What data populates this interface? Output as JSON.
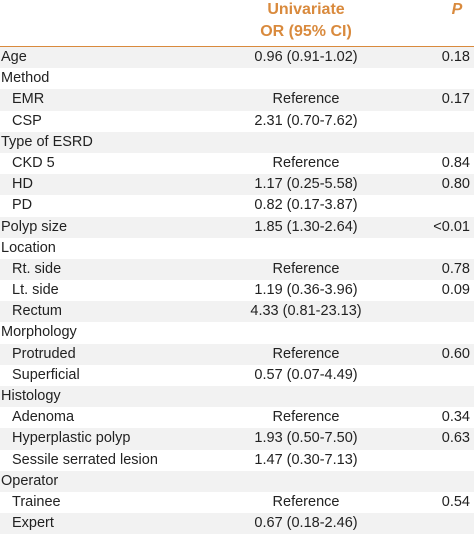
{
  "header": {
    "col_or_line1": "Univariate",
    "col_or_line2": "OR (95% CI)",
    "col_p": "P"
  },
  "colors": {
    "header_text": "#d98a3d",
    "row_shade": "#f2f2f2"
  },
  "rows": [
    {
      "label": "Age",
      "or": "0.96 (0.91-1.02)",
      "p": "0.18",
      "indent": false
    },
    {
      "label": "Method",
      "or": "",
      "p": "",
      "indent": false
    },
    {
      "label": "EMR",
      "or": "Reference",
      "p": "0.17",
      "indent": true
    },
    {
      "label": "CSP",
      "or": "2.31 (0.70-7.62)",
      "p": "",
      "indent": true
    },
    {
      "label": "Type of ESRD",
      "or": "",
      "p": "",
      "indent": false
    },
    {
      "label": "CKD 5",
      "or": "Reference",
      "p": "0.84",
      "indent": true
    },
    {
      "label": "HD",
      "or": "1.17 (0.25-5.58)",
      "p": "0.80",
      "indent": true
    },
    {
      "label": "PD",
      "or": "0.82 (0.17-3.87)",
      "p": "",
      "indent": true
    },
    {
      "label": "Polyp size",
      "or": "1.85 (1.30-2.64)",
      "p": "<0.01",
      "indent": false
    },
    {
      "label": "Location",
      "or": "",
      "p": "",
      "indent": false
    },
    {
      "label": "Rt. side",
      "or": "Reference",
      "p": "0.78",
      "indent": true
    },
    {
      "label": "Lt. side",
      "or": "1.19 (0.36-3.96)",
      "p": "0.09",
      "indent": true
    },
    {
      "label": "Rectum",
      "or": "4.33 (0.81-23.13)",
      "p": "",
      "indent": true
    },
    {
      "label": "Morphology",
      "or": "",
      "p": "",
      "indent": false
    },
    {
      "label": "Protruded",
      "or": "Reference",
      "p": "0.60",
      "indent": true
    },
    {
      "label": "Superficial",
      "or": "0.57 (0.07-4.49)",
      "p": "",
      "indent": true
    },
    {
      "label": "Histology",
      "or": "",
      "p": "",
      "indent": false
    },
    {
      "label": "Adenoma",
      "or": "Reference",
      "p": "0.34",
      "indent": true
    },
    {
      "label": "Hyperplastic polyp",
      "or": "1.93 (0.50-7.50)",
      "p": "0.63",
      "indent": true
    },
    {
      "label": "Sessile serrated lesion",
      "or": "1.47 (0.30-7.13)",
      "p": "",
      "indent": true
    },
    {
      "label": "Operator",
      "or": "",
      "p": "",
      "indent": false
    },
    {
      "label": "Trainee",
      "or": "Reference",
      "p": "0.54",
      "indent": true
    },
    {
      "label": "Expert",
      "or": "0.67 (0.18-2.46)",
      "p": "",
      "indent": true
    }
  ]
}
